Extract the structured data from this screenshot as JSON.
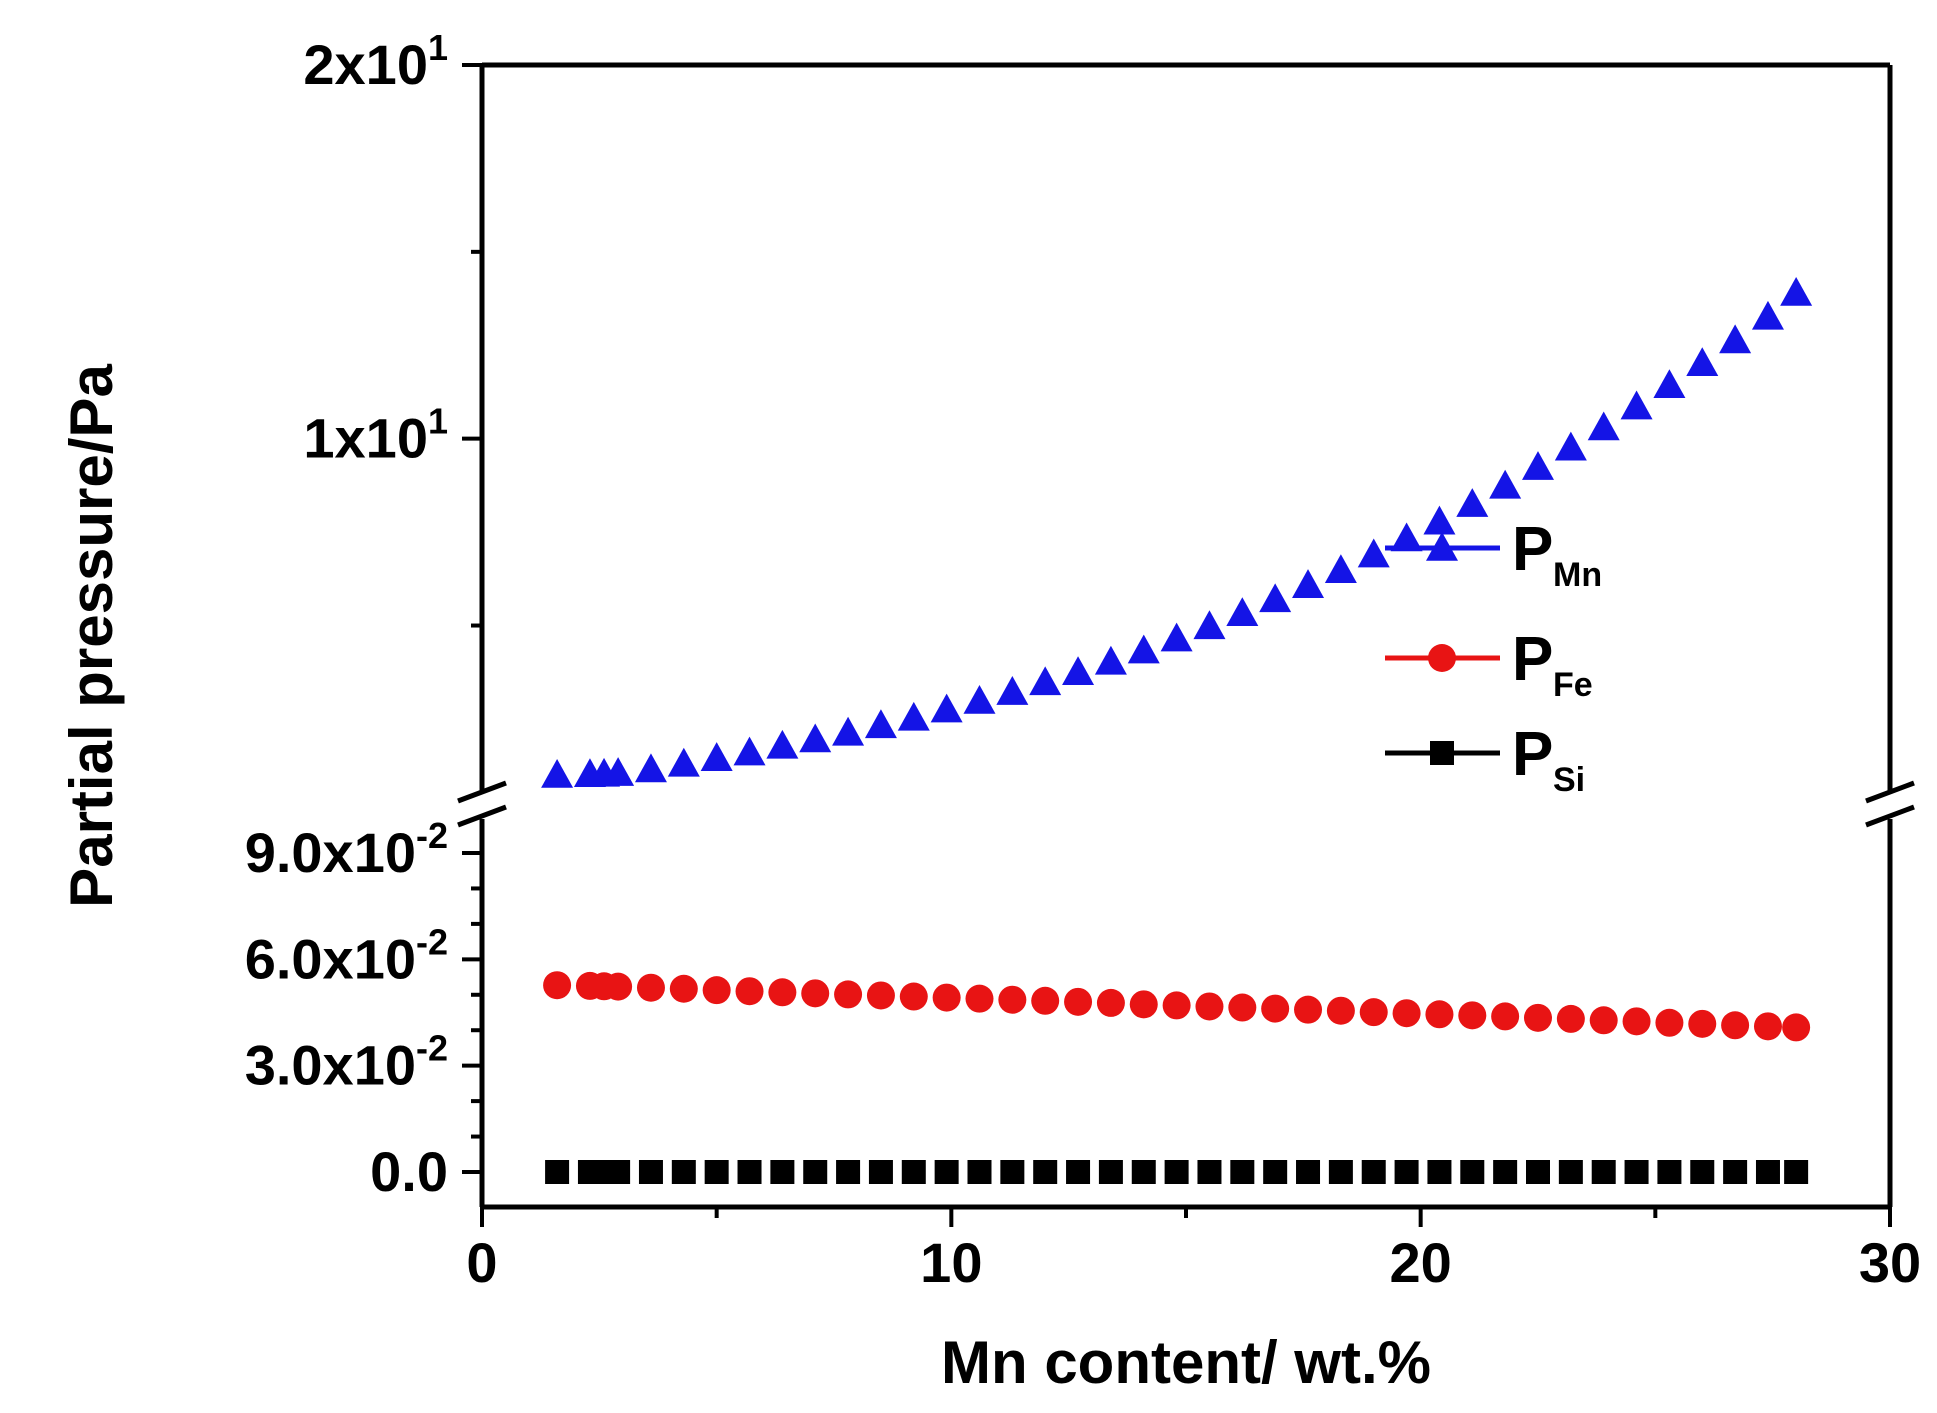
{
  "chart_data": {
    "type": "scatter",
    "xlabel": "Mn content/ wt.%",
    "ylabel": "Partial pressure/Pa",
    "xlim": [
      0,
      30
    ],
    "x_ticks": [
      {
        "value": 0,
        "label": "0"
      },
      {
        "value": 10,
        "label": "10"
      },
      {
        "value": 20,
        "label": "20"
      },
      {
        "value": 30,
        "label": "30"
      }
    ],
    "y_axis": {
      "broken": true,
      "lower_segment": {
        "range": [
          0,
          0.1
        ],
        "ticks": [
          {
            "value": 0.0,
            "base": "0.0",
            "exp": ""
          },
          {
            "value": 0.03,
            "base": "3.0x10",
            "exp": "-2"
          },
          {
            "value": 0.06,
            "base": "6.0x10",
            "exp": "-2"
          },
          {
            "value": 0.09,
            "base": "9.0x10",
            "exp": "-2"
          }
        ]
      },
      "upper_segment": {
        "range": [
          1.0,
          20
        ],
        "ticks": [
          {
            "value": 10,
            "base": "1x10",
            "exp": "1"
          },
          {
            "value": 20,
            "base": "2x10",
            "exp": "1"
          }
        ]
      }
    },
    "x": [
      1.6,
      2.3,
      2.6,
      2.9,
      3.6,
      4.3,
      5.0,
      5.7,
      6.4,
      7.1,
      7.8,
      8.5,
      9.2,
      9.9,
      10.6,
      11.3,
      12.0,
      12.7,
      13.4,
      14.1,
      14.8,
      15.5,
      16.2,
      16.9,
      17.6,
      18.3,
      19.0,
      19.7,
      20.4,
      21.1,
      21.8,
      22.5,
      23.2,
      23.9,
      24.6,
      25.3,
      26.0,
      26.7,
      27.4,
      28.0
    ],
    "series": [
      {
        "name": "PMn",
        "label_main": "P",
        "label_sub": "Mn",
        "color": "#1414e6",
        "marker": "triangle",
        "segment": "upper",
        "values": [
          1.0,
          1.02,
          1.03,
          1.05,
          1.15,
          1.3,
          1.45,
          1.6,
          1.78,
          1.95,
          2.13,
          2.33,
          2.53,
          2.75,
          2.98,
          3.22,
          3.48,
          3.75,
          4.03,
          4.33,
          4.65,
          4.98,
          5.33,
          5.7,
          6.08,
          6.48,
          6.9,
          7.33,
          7.78,
          8.25,
          8.74,
          9.24,
          9.76,
          10.3,
          10.86,
          11.43,
          12.02,
          12.63,
          13.26,
          13.9
        ]
      },
      {
        "name": "PFe",
        "label_main": "P",
        "label_sub": "Fe",
        "color": "#e81414",
        "marker": "circle",
        "segment": "lower",
        "values": [
          0.0527,
          0.0525,
          0.0524,
          0.0523,
          0.052,
          0.0517,
          0.0513,
          0.051,
          0.0507,
          0.0504,
          0.0501,
          0.0498,
          0.0495,
          0.0492,
          0.0489,
          0.0486,
          0.0483,
          0.048,
          0.0477,
          0.0473,
          0.047,
          0.0467,
          0.0464,
          0.0461,
          0.0458,
          0.0455,
          0.0451,
          0.0448,
          0.0445,
          0.0442,
          0.0439,
          0.0435,
          0.0432,
          0.0428,
          0.0425,
          0.0421,
          0.0418,
          0.0414,
          0.0411,
          0.0408
        ]
      },
      {
        "name": "PSi",
        "label_main": "P",
        "label_sub": "Si",
        "color": "#000000",
        "marker": "square",
        "segment": "lower",
        "values": [
          0,
          0,
          0,
          0,
          0,
          0,
          0,
          0,
          0,
          0,
          0,
          0,
          0,
          0,
          0,
          0,
          0,
          0,
          0,
          0,
          0,
          0,
          0,
          0,
          0,
          0,
          0,
          0,
          0,
          0,
          0,
          0,
          0,
          0,
          0,
          0,
          0,
          0,
          0,
          0
        ]
      }
    ],
    "legend": "right-center"
  }
}
